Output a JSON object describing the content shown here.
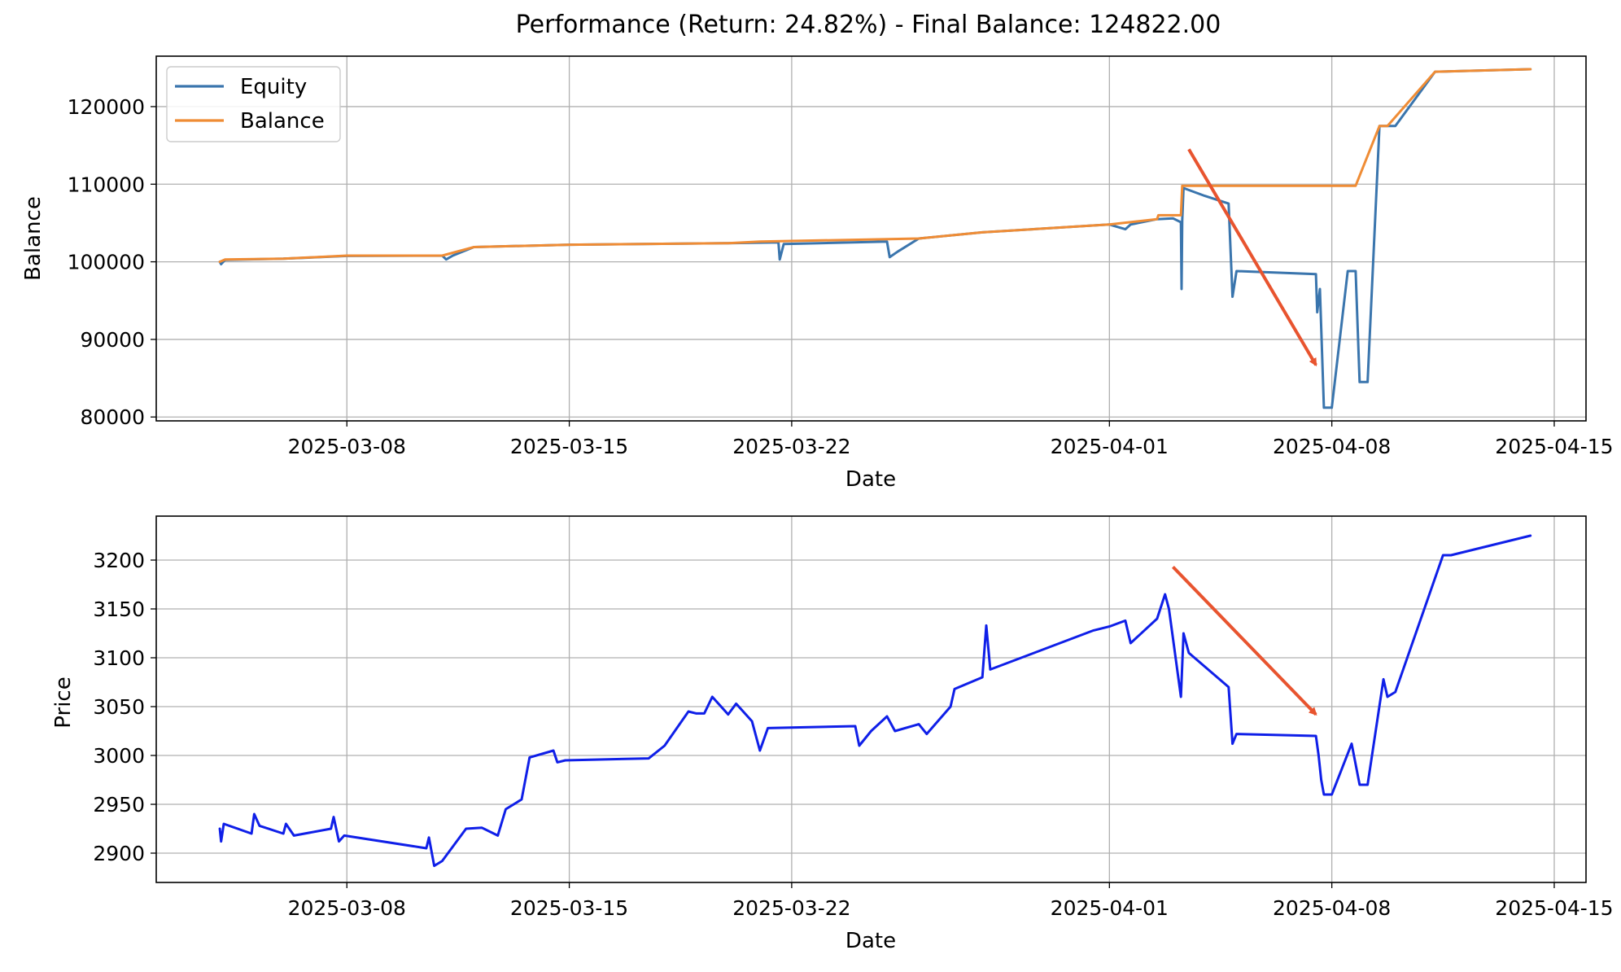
{
  "chart_data": [
    {
      "type": "line",
      "title": "Performance (Return: 24.82%) - Final Balance: 124822.00",
      "xlabel": "Date",
      "ylabel": "Balance",
      "xlim": [
        "2025-03-02",
        "2025-04-16"
      ],
      "ylim": [
        79500,
        126500
      ],
      "grid": true,
      "legend_location": "upper-left",
      "xticks": [
        "2025-03-08",
        "2025-03-15",
        "2025-03-22",
        "2025-04-01",
        "2025-04-08",
        "2025-04-15"
      ],
      "yticks": [
        80000,
        90000,
        100000,
        110000,
        120000
      ],
      "series": [
        {
          "name": "Equity",
          "color": "#3a75ad",
          "points": [
            [
              "2025-03-04T00:00",
              100000
            ],
            [
              "2025-03-04T01:00",
              99700
            ],
            [
              "2025-03-04T04:00",
              100250
            ],
            [
              "2025-03-06T00:00",
              100400
            ],
            [
              "2025-03-08T00:00",
              100750
            ],
            [
              "2025-03-11T00:00",
              100800
            ],
            [
              "2025-03-11T03:00",
              100300
            ],
            [
              "2025-03-11T08:00",
              100800
            ],
            [
              "2025-03-12T00:00",
              101900
            ],
            [
              "2025-03-15T00:00",
              102200
            ],
            [
              "2025-03-20T00:00",
              102400
            ],
            [
              "2025-03-21T14:00",
              102500
            ],
            [
              "2025-03-21T15:00",
              100300
            ],
            [
              "2025-03-21T18:00",
              102300
            ],
            [
              "2025-03-25T00:00",
              102600
            ],
            [
              "2025-03-25T02:00",
              100600
            ],
            [
              "2025-03-25T08:00",
              101300
            ],
            [
              "2025-03-26T00:00",
              103000
            ],
            [
              "2025-03-28T00:00",
              103800
            ],
            [
              "2025-04-01T00:00",
              104800
            ],
            [
              "2025-04-01T12:00",
              104200
            ],
            [
              "2025-04-01T16:00",
              104800
            ],
            [
              "2025-04-02T12:00",
              105500
            ],
            [
              "2025-04-03T00:00",
              105600
            ],
            [
              "2025-04-03T06:00",
              105100
            ],
            [
              "2025-04-03T06:30",
              96500
            ],
            [
              "2025-04-03T07:00",
              105300
            ],
            [
              "2025-04-03T08:00",
              109500
            ],
            [
              "2025-04-04T00:00",
              108500
            ],
            [
              "2025-04-04T18:00",
              107500
            ],
            [
              "2025-04-04T21:00",
              95500
            ],
            [
              "2025-04-05T00:00",
              98800
            ],
            [
              "2025-04-07T12:00",
              98400
            ],
            [
              "2025-04-07T13:00",
              93500
            ],
            [
              "2025-04-07T15:00",
              96500
            ],
            [
              "2025-04-07T18:00",
              81200
            ],
            [
              "2025-04-08T00:00",
              81200
            ],
            [
              "2025-04-08T12:00",
              98800
            ],
            [
              "2025-04-08T18:00",
              98800
            ],
            [
              "2025-04-08T21:00",
              84500
            ],
            [
              "2025-04-09T03:00",
              84500
            ],
            [
              "2025-04-09T12:00",
              117500
            ],
            [
              "2025-04-10T00:00",
              117500
            ],
            [
              "2025-04-11T06:00",
              124500
            ],
            [
              "2025-04-14T06:00",
              124822
            ]
          ]
        },
        {
          "name": "Balance",
          "color": "#ef8c35",
          "points": [
            [
              "2025-03-04T00:00",
              100000
            ],
            [
              "2025-03-04T04:00",
              100300
            ],
            [
              "2025-03-06T00:00",
              100400
            ],
            [
              "2025-03-08T00:00",
              100800
            ],
            [
              "2025-03-11T00:00",
              100800
            ],
            [
              "2025-03-12T00:00",
              101900
            ],
            [
              "2025-03-15T00:00",
              102200
            ],
            [
              "2025-03-20T00:00",
              102400
            ],
            [
              "2025-03-21T00:00",
              102600
            ],
            [
              "2025-03-26T00:00",
              103000
            ],
            [
              "2025-03-28T00:00",
              103800
            ],
            [
              "2025-04-01T00:00",
              104800
            ],
            [
              "2025-04-02T12:00",
              105500
            ],
            [
              "2025-04-02T13:00",
              106000
            ],
            [
              "2025-04-03T06:00",
              106000
            ],
            [
              "2025-04-03T07:00",
              109800
            ],
            [
              "2025-04-08T12:00",
              109800
            ],
            [
              "2025-04-08T18:00",
              109800
            ],
            [
              "2025-04-09T12:00",
              117500
            ],
            [
              "2025-04-09T18:00",
              117500
            ],
            [
              "2025-04-11T06:00",
              124500
            ],
            [
              "2025-04-14T06:00",
              124822
            ]
          ]
        }
      ],
      "annotations": [
        {
          "type": "arrow",
          "color": "#e8542f",
          "from": [
            "2025-04-03T12:00",
            114500
          ],
          "to": [
            "2025-04-07T12:00",
            86700
          ]
        }
      ]
    },
    {
      "type": "line",
      "title": "",
      "xlabel": "Date",
      "ylabel": "Price",
      "xlim": [
        "2025-03-02",
        "2025-04-16"
      ],
      "ylim": [
        2870,
        3245
      ],
      "grid": true,
      "xticks": [
        "2025-03-08",
        "2025-03-15",
        "2025-03-22",
        "2025-04-01",
        "2025-04-08",
        "2025-04-15"
      ],
      "yticks": [
        2900,
        2950,
        3000,
        3050,
        3100,
        3150,
        3200
      ],
      "series": [
        {
          "color": "#0f1fe8",
          "points": [
            [
              "2025-03-04T00:00",
              2925
            ],
            [
              "2025-03-04T01:00",
              2912
            ],
            [
              "2025-03-04T03:00",
              2930
            ],
            [
              "2025-03-05T00:00",
              2920
            ],
            [
              "2025-03-05T02:00",
              2940
            ],
            [
              "2025-03-05T06:00",
              2928
            ],
            [
              "2025-03-06T00:00",
              2920
            ],
            [
              "2025-03-06T02:00",
              2930
            ],
            [
              "2025-03-06T08:00",
              2918
            ],
            [
              "2025-03-07T12:00",
              2925
            ],
            [
              "2025-03-07T14:00",
              2937
            ],
            [
              "2025-03-07T18:00",
              2912
            ],
            [
              "2025-03-07T22:00",
              2918
            ],
            [
              "2025-03-10T12:00",
              2905
            ],
            [
              "2025-03-10T14:00",
              2916
            ],
            [
              "2025-03-10T18:00",
              2887
            ],
            [
              "2025-03-11T00:00",
              2892
            ],
            [
              "2025-03-11T18:00",
              2925
            ],
            [
              "2025-03-12T06:00",
              2926
            ],
            [
              "2025-03-12T18:00",
              2918
            ],
            [
              "2025-03-13T00:00",
              2945
            ],
            [
              "2025-03-13T12:00",
              2955
            ],
            [
              "2025-03-13T18:00",
              2998
            ],
            [
              "2025-03-14T12:00",
              3005
            ],
            [
              "2025-03-14T15:00",
              2993
            ],
            [
              "2025-03-14T21:00",
              2995
            ],
            [
              "2025-03-17T12:00",
              2997
            ],
            [
              "2025-03-18T00:00",
              3010
            ],
            [
              "2025-03-18T18:00",
              3045
            ],
            [
              "2025-03-19T00:00",
              3043
            ],
            [
              "2025-03-19T06:00",
              3043
            ],
            [
              "2025-03-19T12:00",
              3060
            ],
            [
              "2025-03-20T00:00",
              3042
            ],
            [
              "2025-03-20T06:00",
              3053
            ],
            [
              "2025-03-20T18:00",
              3035
            ],
            [
              "2025-03-21T00:00",
              3005
            ],
            [
              "2025-03-21T06:00",
              3028
            ],
            [
              "2025-03-24T00:00",
              3030
            ],
            [
              "2025-03-24T03:00",
              3010
            ],
            [
              "2025-03-24T12:00",
              3025
            ],
            [
              "2025-03-25T00:00",
              3040
            ],
            [
              "2025-03-25T06:00",
              3025
            ],
            [
              "2025-03-26T00:00",
              3032
            ],
            [
              "2025-03-26T06:00",
              3022
            ],
            [
              "2025-03-27T00:00",
              3050
            ],
            [
              "2025-03-27T03:00",
              3068
            ],
            [
              "2025-03-28T00:00",
              3080
            ],
            [
              "2025-03-28T03:00",
              3133
            ],
            [
              "2025-03-28T06:00",
              3088
            ],
            [
              "2025-03-31T12:00",
              3128
            ],
            [
              "2025-04-01T00:00",
              3132
            ],
            [
              "2025-04-01T12:00",
              3138
            ],
            [
              "2025-04-01T16:00",
              3115
            ],
            [
              "2025-04-02T12:00",
              3140
            ],
            [
              "2025-04-02T18:00",
              3165
            ],
            [
              "2025-04-02T21:00",
              3150
            ],
            [
              "2025-04-03T06:00",
              3060
            ],
            [
              "2025-04-03T08:00",
              3125
            ],
            [
              "2025-04-03T12:00",
              3105
            ],
            [
              "2025-04-04T18:00",
              3070
            ],
            [
              "2025-04-04T21:00",
              3012
            ],
            [
              "2025-04-05T00:00",
              3022
            ],
            [
              "2025-04-07T12:00",
              3020
            ],
            [
              "2025-04-07T14:00",
              3000
            ],
            [
              "2025-04-07T16:00",
              2975
            ],
            [
              "2025-04-07T18:00",
              2960
            ],
            [
              "2025-04-08T00:00",
              2960
            ],
            [
              "2025-04-08T15:00",
              3012
            ],
            [
              "2025-04-08T21:00",
              2970
            ],
            [
              "2025-04-09T03:00",
              2970
            ],
            [
              "2025-04-09T15:00",
              3078
            ],
            [
              "2025-04-09T18:00",
              3060
            ],
            [
              "2025-04-10T00:00",
              3065
            ],
            [
              "2025-04-11T12:00",
              3205
            ],
            [
              "2025-04-11T18:00",
              3205
            ],
            [
              "2025-04-14T06:00",
              3225
            ]
          ]
        }
      ],
      "annotations": [
        {
          "type": "arrow",
          "color": "#e8542f",
          "from": [
            "2025-04-03T00:00",
            3193
          ],
          "to": [
            "2025-04-07T12:00",
            3042
          ]
        }
      ]
    }
  ]
}
